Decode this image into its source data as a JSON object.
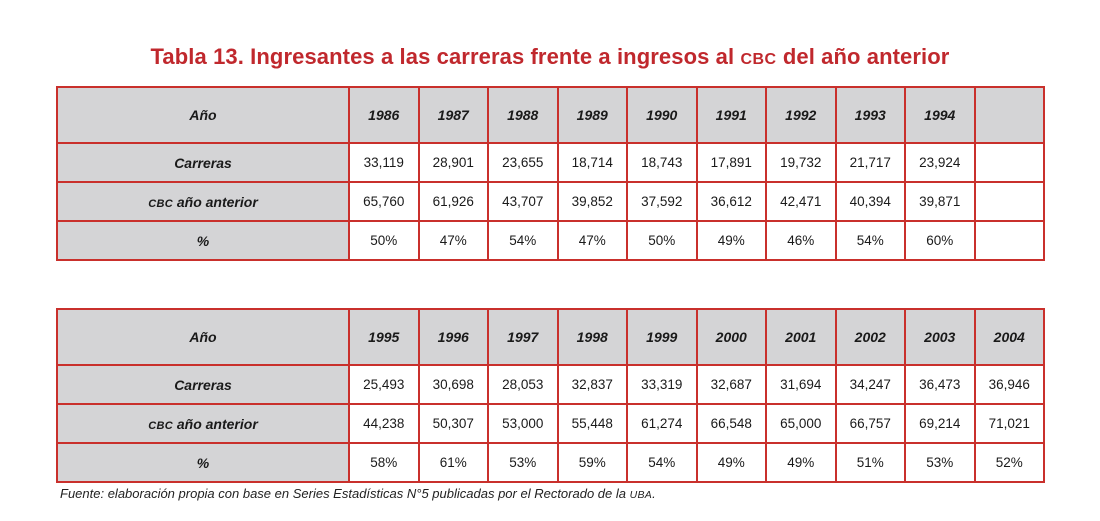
{
  "title": {
    "prefix": "Tabla 13. Ingresantes a las carreras frente a ingresos al ",
    "abbr": "cbc",
    "suffix": " del año anterior"
  },
  "row_labels": {
    "year": "Año",
    "carreras": "Carreras",
    "cbc_abbr": "cbc",
    "cbc_rest": " año anterior",
    "pct": "%"
  },
  "table1": {
    "years": [
      "1986",
      "1987",
      "1988",
      "1989",
      "1990",
      "1991",
      "1992",
      "1993",
      "1994",
      ""
    ],
    "carreras": [
      "33,119",
      "28,901",
      "23,655",
      "18,714",
      "18,743",
      "17,891",
      "19,732",
      "21,717",
      "23,924",
      ""
    ],
    "cbc": [
      "65,760",
      "61,926",
      "43,707",
      "39,852",
      "37,592",
      "36,612",
      "42,471",
      "40,394",
      "39,871",
      ""
    ],
    "pct": [
      "50%",
      "47%",
      "54%",
      "47%",
      "50%",
      "49%",
      "46%",
      "54%",
      "60%",
      ""
    ]
  },
  "table2": {
    "years": [
      "1995",
      "1996",
      "1997",
      "1998",
      "1999",
      "2000",
      "2001",
      "2002",
      "2003",
      "2004"
    ],
    "carreras": [
      "25,493",
      "30,698",
      "28,053",
      "32,837",
      "33,319",
      "32,687",
      "31,694",
      "34,247",
      "36,473",
      "36,946"
    ],
    "cbc": [
      "44,238",
      "50,307",
      "53,000",
      "55,448",
      "61,274",
      "66,548",
      "65,000",
      "66,757",
      "69,214",
      "71,021"
    ],
    "pct": [
      "58%",
      "61%",
      "53%",
      "59%",
      "54%",
      "49%",
      "49%",
      "51%",
      "53%",
      "52%"
    ]
  },
  "footnote": {
    "text": "Fuente: elaboración propia con base en Series Estadísticas N°5 publicadas por el Rectorado de la ",
    "abbr": "uba",
    "end": "."
  },
  "colors": {
    "title": "#c0282d",
    "border": "#c9302c",
    "header_bg": "#d4d4d6"
  }
}
